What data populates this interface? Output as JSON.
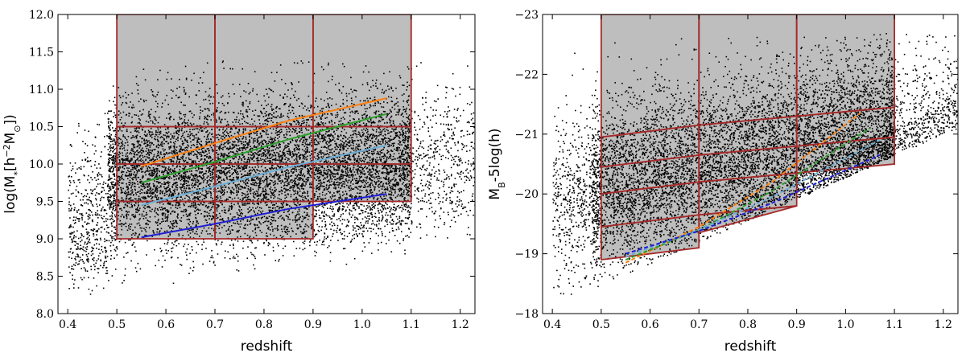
{
  "chart_data": [
    {
      "type": "scatter",
      "xlabel": "redshift",
      "ylabel": "log(M",
      "ylabel_sub": "*",
      "ylabel_rest": "[h",
      "ylabel_sup": "−2",
      "ylabel_tail": "M",
      "ylabel_sub2": "⊙",
      "ylabel_end": "])",
      "xlim": [
        0.38,
        1.23
      ],
      "ylim": [
        8.0,
        12.0
      ],
      "xticks": [
        0.4,
        0.5,
        0.6,
        0.7,
        0.8,
        0.9,
        1.0,
        1.1,
        1.2
      ],
      "yticks": [
        8.0,
        8.5,
        9.0,
        9.5,
        10.0,
        10.5,
        11.0,
        11.5,
        12.0
      ],
      "xtick_labels": [
        "0.4",
        "0.5",
        "0.6",
        "0.7",
        "0.8",
        "0.9",
        "1.0",
        "1.1",
        "1.2"
      ],
      "ytick_labels": [
        "8.0",
        "8.5",
        "9.0",
        "9.5",
        "10.0",
        "10.5",
        "11.0",
        "11.5",
        "12.0"
      ],
      "shaded_region_color": "#bebebe",
      "box_color": "#a52a2a",
      "scatter_color": "#000000",
      "shaded_polygon": [
        [
          0.5,
          9.0
        ],
        [
          0.9,
          9.0
        ],
        [
          0.9,
          9.5
        ],
        [
          1.1,
          9.5
        ],
        [
          1.1,
          12.0
        ],
        [
          0.5,
          12.0
        ]
      ],
      "bin_boxes": [
        {
          "x": [
            0.5,
            0.7
          ],
          "y": [
            9.0,
            9.5
          ]
        },
        {
          "x": [
            0.7,
            0.9
          ],
          "y": [
            9.0,
            9.5
          ]
        },
        {
          "x": [
            0.5,
            0.7
          ],
          "y": [
            9.5,
            10.0
          ]
        },
        {
          "x": [
            0.7,
            0.9
          ],
          "y": [
            9.5,
            10.0
          ]
        },
        {
          "x": [
            0.9,
            1.1
          ],
          "y": [
            9.5,
            10.0
          ]
        },
        {
          "x": [
            0.5,
            0.7
          ],
          "y": [
            10.0,
            10.5
          ]
        },
        {
          "x": [
            0.7,
            0.9
          ],
          "y": [
            10.0,
            10.5
          ]
        },
        {
          "x": [
            0.9,
            1.1
          ],
          "y": [
            10.0,
            10.5
          ]
        },
        {
          "x": [
            0.5,
            0.7
          ],
          "y": [
            10.5,
            12.0
          ]
        },
        {
          "x": [
            0.7,
            0.9
          ],
          "y": [
            10.5,
            12.0
          ]
        },
        {
          "x": [
            0.9,
            1.1
          ],
          "y": [
            10.5,
            12.0
          ]
        }
      ],
      "series": [
        {
          "color": "#ff7f0e",
          "style": "solid",
          "x": [
            0.55,
            0.7,
            0.85,
            1.05
          ],
          "y": [
            9.97,
            10.28,
            10.58,
            10.88
          ]
        },
        {
          "color": "#2ca02c",
          "style": "solid",
          "x": [
            0.55,
            0.7,
            0.85,
            1.05
          ],
          "y": [
            9.75,
            10.03,
            10.33,
            10.67
          ]
        },
        {
          "color": "#6baed6",
          "style": "solid",
          "x": [
            0.55,
            0.7,
            0.85,
            1.05
          ],
          "y": [
            9.45,
            9.7,
            9.96,
            10.25
          ]
        },
        {
          "color": "#1f1fd6",
          "style": "solid",
          "x": [
            0.55,
            0.7,
            0.85,
            1.05
          ],
          "y": [
            9.02,
            9.2,
            9.4,
            9.6
          ]
        }
      ]
    },
    {
      "type": "scatter",
      "xlabel": "redshift",
      "ylabel": "M",
      "ylabel_sub": "B",
      "ylabel_rest": "-5log(h)",
      "xlim": [
        0.38,
        1.23
      ],
      "ylim": [
        -18.0,
        -23.0
      ],
      "xticks": [
        0.4,
        0.5,
        0.6,
        0.7,
        0.8,
        0.9,
        1.0,
        1.1,
        1.2
      ],
      "yticks": [
        -18,
        -19,
        -20,
        -21,
        -22,
        -23
      ],
      "xtick_labels": [
        "0.4",
        "0.5",
        "0.6",
        "0.7",
        "0.8",
        "0.9",
        "1.0",
        "1.1",
        "1.2"
      ],
      "ytick_labels": [
        "−18",
        "−19",
        "−20",
        "−21",
        "−22",
        "−23"
      ],
      "shaded_region_color": "#bebebe",
      "box_color": "#a52a2a",
      "scatter_color": "#000000",
      "shaded_polygon": [
        [
          0.5,
          -18.9
        ],
        [
          0.7,
          -19.1
        ],
        [
          0.7,
          -19.35
        ],
        [
          0.9,
          -19.8
        ],
        [
          0.9,
          -20.35
        ],
        [
          1.1,
          -20.5
        ],
        [
          1.1,
          -23.0
        ],
        [
          0.5,
          -23.0
        ]
      ],
      "bin_boxes": [
        {
          "x": [
            0.5,
            0.7
          ],
          "y": [
            [
              -18.9,
              -19.1
            ],
            [
              -19.45,
              -19.65
            ]
          ]
        },
        {
          "x": [
            0.5,
            0.7
          ],
          "y": [
            [
              -19.45,
              -19.65
            ],
            [
              -20.0,
              -20.2
            ]
          ]
        },
        {
          "x": [
            0.5,
            0.7
          ],
          "y": [
            [
              -20.0,
              -20.2
            ],
            [
              -20.45,
              -20.65
            ]
          ]
        },
        {
          "x": [
            0.5,
            0.7
          ],
          "y": [
            [
              -20.45,
              -20.65
            ],
            [
              -20.95,
              -21.15
            ]
          ]
        },
        {
          "x": [
            0.5,
            0.7
          ],
          "y": [
            [
              -20.95,
              -21.15
            ],
            [
              -23.0,
              -23.0
            ]
          ]
        },
        {
          "x": [
            0.7,
            0.9
          ],
          "y": [
            [
              -19.35,
              -19.8
            ],
            [
              -19.65,
              -19.8
            ]
          ]
        },
        {
          "x": [
            0.7,
            0.9
          ],
          "y": [
            [
              -19.65,
              -19.8
            ],
            [
              -20.2,
              -20.35
            ]
          ]
        },
        {
          "x": [
            0.7,
            0.9
          ],
          "y": [
            [
              -20.2,
              -20.35
            ],
            [
              -20.65,
              -20.8
            ]
          ]
        },
        {
          "x": [
            0.7,
            0.9
          ],
          "y": [
            [
              -20.65,
              -20.8
            ],
            [
              -21.15,
              -21.3
            ]
          ]
        },
        {
          "x": [
            0.7,
            0.9
          ],
          "y": [
            [
              -21.15,
              -21.3
            ],
            [
              -23.0,
              -23.0
            ]
          ]
        },
        {
          "x": [
            0.9,
            1.1
          ],
          "y": [
            [
              -20.35,
              -20.5
            ],
            [
              -20.8,
              -20.95
            ]
          ]
        },
        {
          "x": [
            0.9,
            1.1
          ],
          "y": [
            [
              -20.8,
              -20.95
            ],
            [
              -21.3,
              -21.45
            ]
          ]
        },
        {
          "x": [
            0.9,
            1.1
          ],
          "y": [
            [
              -21.3,
              -21.45
            ],
            [
              -23.0,
              -23.0
            ]
          ]
        }
      ],
      "series": [
        {
          "color": "#ff7f0e",
          "style": "dashed",
          "x": [
            0.55,
            0.7,
            0.85,
            1.03
          ],
          "y": [
            -18.85,
            -19.45,
            -20.2,
            -21.35
          ]
        },
        {
          "color": "#2ca02c",
          "style": "dashed",
          "x": [
            0.55,
            0.7,
            0.85,
            1.05
          ],
          "y": [
            -18.9,
            -19.4,
            -20.05,
            -21.1
          ]
        },
        {
          "color": "#6baed6",
          "style": "dashed",
          "x": [
            0.55,
            0.7,
            0.85,
            1.07
          ],
          "y": [
            -18.95,
            -19.4,
            -19.95,
            -20.9
          ]
        },
        {
          "color": "#1f1fd6",
          "style": "dashed",
          "x": [
            0.55,
            0.7,
            0.85,
            1.07
          ],
          "y": [
            -19.0,
            -19.38,
            -19.85,
            -20.65
          ]
        }
      ]
    }
  ]
}
